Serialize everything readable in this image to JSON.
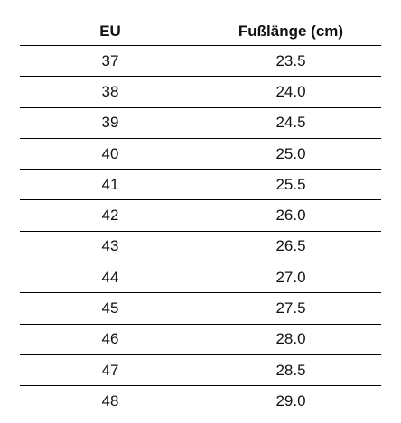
{
  "table": {
    "header": [
      "EU",
      "Fußlänge (cm)"
    ],
    "rows": [
      [
        "37",
        "23.5"
      ],
      [
        "38",
        "24.0"
      ],
      [
        "39",
        "24.5"
      ],
      [
        "40",
        "25.0"
      ],
      [
        "41",
        "25.5"
      ],
      [
        "42",
        "26.0"
      ],
      [
        "43",
        "26.5"
      ],
      [
        "44",
        "27.0"
      ],
      [
        "45",
        "27.5"
      ],
      [
        "46",
        "28.0"
      ],
      [
        "47",
        "28.5"
      ],
      [
        "48",
        "29.0"
      ]
    ]
  }
}
